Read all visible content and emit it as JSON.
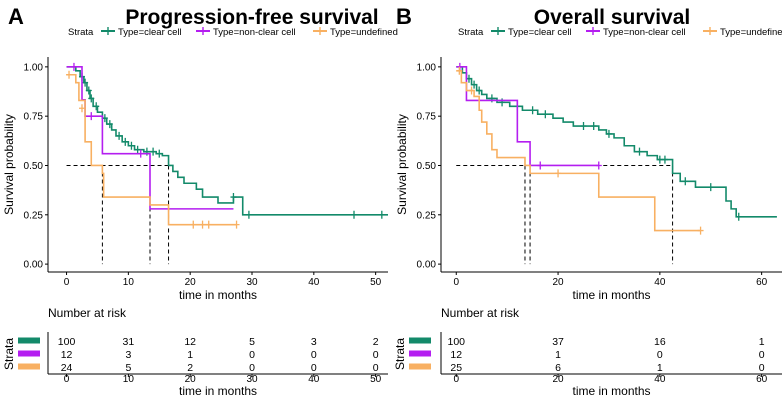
{
  "colors": {
    "clear_cell": "#138a6a",
    "non_clear_cell": "#b41ef0",
    "undefined": "#f8b062",
    "axis": "#000000",
    "median_line": "#000000"
  },
  "chart_data": [
    {
      "type": "line",
      "panel_letter": "A",
      "title": "Progression-free survival",
      "legend_title": "Strata",
      "legend_labels": [
        "Type=clear cell",
        "Type=non-clear cell",
        "Type=undefined"
      ],
      "xlabel": "time in months",
      "ylabel": "Survival probability",
      "xlim": [
        -3,
        52
      ],
      "ylim": [
        -0.04,
        1.05
      ],
      "xticks": [
        0,
        10,
        20,
        30,
        40,
        50
      ],
      "yticks": [
        0.0,
        0.25,
        0.5,
        0.75,
        1.0
      ],
      "ytick_labels": [
        "0.00",
        "0.25",
        "0.50",
        "0.75",
        "1.00"
      ],
      "medians": [
        5.8,
        13.5,
        16.5
      ],
      "series": [
        {
          "name": "Type=clear cell",
          "color_key": "clear_cell",
          "steps": [
            [
              0,
              1.0
            ],
            [
              1.5,
              0.98
            ],
            [
              2.2,
              0.95
            ],
            [
              2.8,
              0.92
            ],
            [
              3.3,
              0.88
            ],
            [
              3.8,
              0.84
            ],
            [
              4.3,
              0.8
            ],
            [
              5.0,
              0.77
            ],
            [
              5.8,
              0.74
            ],
            [
              6.5,
              0.71
            ],
            [
              7.3,
              0.68
            ],
            [
              8.0,
              0.65
            ],
            [
              9.0,
              0.62
            ],
            [
              10.0,
              0.6
            ],
            [
              11.0,
              0.58
            ],
            [
              12.5,
              0.57
            ],
            [
              14.5,
              0.56
            ],
            [
              15.5,
              0.55
            ],
            [
              16.5,
              0.5
            ],
            [
              17.2,
              0.47
            ],
            [
              18.0,
              0.44
            ],
            [
              19.0,
              0.41
            ],
            [
              21.0,
              0.38
            ],
            [
              22.0,
              0.34
            ],
            [
              24.5,
              0.31
            ],
            [
              27.0,
              0.34
            ],
            [
              28.5,
              0.25
            ],
            [
              52.0,
              0.25
            ]
          ],
          "censors": [
            [
              2.5,
              0.95
            ],
            [
              3.0,
              0.92
            ],
            [
              3.6,
              0.88
            ],
            [
              4.0,
              0.84
            ],
            [
              4.8,
              0.8
            ],
            [
              6.2,
              0.74
            ],
            [
              7.0,
              0.71
            ],
            [
              8.5,
              0.65
            ],
            [
              9.5,
              0.62
            ],
            [
              10.5,
              0.6
            ],
            [
              11.5,
              0.58
            ],
            [
              13.0,
              0.57
            ],
            [
              14.0,
              0.57
            ],
            [
              15.0,
              0.56
            ],
            [
              27.0,
              0.34
            ],
            [
              29.5,
              0.25
            ],
            [
              46.5,
              0.25
            ],
            [
              51.0,
              0.25
            ]
          ]
        },
        {
          "name": "Type=non-clear cell",
          "color_key": "non_clear_cell",
          "steps": [
            [
              0,
              1.0
            ],
            [
              2.5,
              0.833
            ],
            [
              3.0,
              0.75
            ],
            [
              5.8,
              0.56
            ],
            [
              10.0,
              0.56
            ],
            [
              13.5,
              0.28
            ],
            [
              27.0,
              0.28
            ]
          ],
          "censors": [
            [
              1.2,
              1.0
            ],
            [
              4.0,
              0.75
            ],
            [
              12.0,
              0.56
            ]
          ]
        },
        {
          "name": "Type=undefined",
          "color_key": "undefined",
          "steps": [
            [
              0,
              0.96
            ],
            [
              1.5,
              0.92
            ],
            [
              2.0,
              0.83
            ],
            [
              3.0,
              0.62
            ],
            [
              4.0,
              0.5
            ],
            [
              5.8,
              0.46
            ],
            [
              6.0,
              0.34
            ],
            [
              10.0,
              0.34
            ],
            [
              13.5,
              0.3
            ],
            [
              16.5,
              0.2
            ],
            [
              27.5,
              0.2
            ]
          ],
          "censors": [
            [
              0.4,
              0.96
            ],
            [
              2.5,
              0.79
            ],
            [
              20.5,
              0.2
            ],
            [
              22.0,
              0.2
            ],
            [
              23.0,
              0.2
            ],
            [
              27.5,
              0.2
            ]
          ]
        }
      ],
      "risk_table": {
        "title": "Number at risk",
        "strata_label": "Strata",
        "xlabel": "time in months",
        "xticks": [
          0,
          10,
          20,
          30,
          40,
          50
        ],
        "rows": [
          [
            "100",
            "31",
            "12",
            "5",
            "3",
            "2"
          ],
          [
            "12",
            "3",
            "1",
            "0",
            "0",
            "0"
          ],
          [
            "24",
            "5",
            "2",
            "0",
            "0",
            "0"
          ]
        ]
      }
    },
    {
      "type": "line",
      "panel_letter": "B",
      "title": "Overall survival",
      "legend_title": "Strata",
      "legend_labels": [
        "Type=clear cell",
        "Type=non-clear cell",
        "Type=undefined"
      ],
      "xlabel": "time in months",
      "ylabel": "Survival probability",
      "xlim": [
        -3,
        64
      ],
      "ylim": [
        -0.04,
        1.05
      ],
      "xticks": [
        0,
        20,
        40,
        60
      ],
      "yticks": [
        0.0,
        0.25,
        0.5,
        0.75,
        1.0
      ],
      "ytick_labels": [
        "0.00",
        "0.25",
        "0.50",
        "0.75",
        "1.00"
      ],
      "medians": [
        13.5,
        14.5,
        42.5
      ],
      "series": [
        {
          "name": "Type=clear cell",
          "color_key": "clear_cell",
          "steps": [
            [
              0,
              1.0
            ],
            [
              1.2,
              0.97
            ],
            [
              2.0,
              0.94
            ],
            [
              3.0,
              0.91
            ],
            [
              4.0,
              0.88
            ],
            [
              5.0,
              0.86
            ],
            [
              6.0,
              0.84
            ],
            [
              8.0,
              0.82
            ],
            [
              10.5,
              0.8
            ],
            [
              13.0,
              0.78
            ],
            [
              16.0,
              0.76
            ],
            [
              19.0,
              0.74
            ],
            [
              21.0,
              0.72
            ],
            [
              23.0,
              0.7
            ],
            [
              28.0,
              0.68
            ],
            [
              29.5,
              0.66
            ],
            [
              31.0,
              0.64
            ],
            [
              33.0,
              0.6
            ],
            [
              35.0,
              0.57
            ],
            [
              37.5,
              0.55
            ],
            [
              39.5,
              0.53
            ],
            [
              42.5,
              0.46
            ],
            [
              44.0,
              0.42
            ],
            [
              47.0,
              0.39
            ],
            [
              53.0,
              0.32
            ],
            [
              54.0,
              0.28
            ],
            [
              55.0,
              0.24
            ],
            [
              63.0,
              0.24
            ]
          ],
          "censors": [
            [
              2.5,
              0.94
            ],
            [
              3.5,
              0.91
            ],
            [
              4.5,
              0.88
            ],
            [
              7.0,
              0.84
            ],
            [
              9.0,
              0.82
            ],
            [
              12.0,
              0.8
            ],
            [
              15.0,
              0.78
            ],
            [
              17.5,
              0.76
            ],
            [
              25.0,
              0.7
            ],
            [
              27.0,
              0.7
            ],
            [
              30.0,
              0.66
            ],
            [
              36.0,
              0.57
            ],
            [
              40.0,
              0.53
            ],
            [
              41.0,
              0.53
            ],
            [
              45.0,
              0.42
            ],
            [
              50.0,
              0.39
            ],
            [
              55.5,
              0.24
            ]
          ]
        },
        {
          "name": "Type=non-clear cell",
          "color_key": "non_clear_cell",
          "steps": [
            [
              0,
              1.0
            ],
            [
              2.0,
              0.83
            ],
            [
              11.0,
              0.83
            ],
            [
              12.0,
              0.62
            ],
            [
              13.5,
              0.62
            ],
            [
              14.5,
              0.5
            ],
            [
              28.0,
              0.5
            ]
          ],
          "censors": [
            [
              0.7,
              1.0
            ],
            [
              16.5,
              0.5
            ],
            [
              28.0,
              0.5
            ]
          ]
        },
        {
          "name": "Type=undefined",
          "color_key": "undefined",
          "steps": [
            [
              0,
              0.98
            ],
            [
              1.0,
              0.92
            ],
            [
              2.0,
              0.88
            ],
            [
              3.5,
              0.85
            ],
            [
              4.5,
              0.78
            ],
            [
              5.0,
              0.72
            ],
            [
              6.0,
              0.66
            ],
            [
              7.0,
              0.58
            ],
            [
              8.0,
              0.54
            ],
            [
              13.5,
              0.5
            ],
            [
              14.5,
              0.46
            ],
            [
              28.0,
              0.34
            ],
            [
              39.0,
              0.17
            ],
            [
              48.0,
              0.17
            ]
          ],
          "censors": [
            [
              0.6,
              0.98
            ],
            [
              3.0,
              0.88
            ],
            [
              20.0,
              0.46
            ],
            [
              48.0,
              0.17
            ]
          ]
        }
      ],
      "risk_table": {
        "title": "Number at risk",
        "strata_label": "Strata",
        "xlabel": "time in months",
        "xticks": [
          0,
          20,
          40,
          60
        ],
        "rows": [
          [
            "100",
            "37",
            "16",
            "1"
          ],
          [
            "12",
            "1",
            "0",
            "0"
          ],
          [
            "25",
            "6",
            "1",
            "0"
          ]
        ]
      }
    }
  ]
}
